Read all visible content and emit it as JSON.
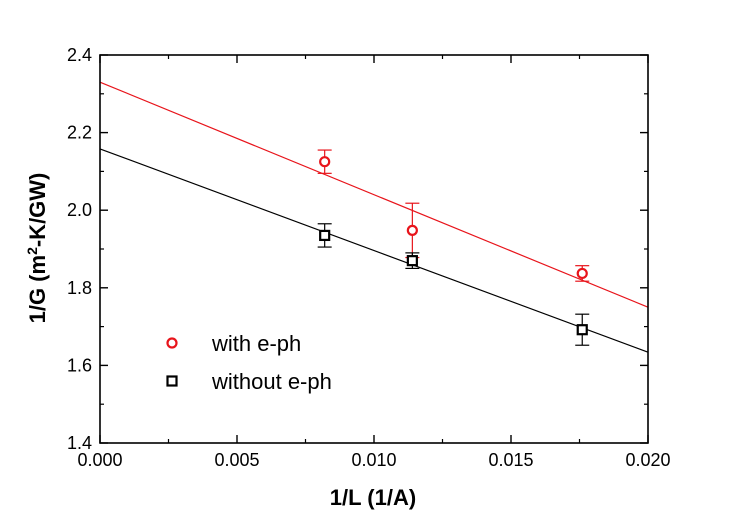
{
  "chart_data": {
    "type": "scatter",
    "xlabel": "1/L (1/A)",
    "ylabel_main": "1/G (m",
    "ylabel_sup": "2",
    "ylabel_tail": "-K/GW)",
    "xlim": [
      0.0,
      0.02
    ],
    "ylim": [
      1.4,
      2.4
    ],
    "x_ticks": [
      0.0,
      0.005,
      0.01,
      0.015,
      0.02
    ],
    "x_tick_labels": [
      "0.000",
      "0.005",
      "0.010",
      "0.015",
      "0.020"
    ],
    "y_ticks": [
      1.4,
      1.6,
      1.8,
      2.0,
      2.2,
      2.4
    ],
    "y_tick_labels": [
      "1.4",
      "1.6",
      "1.8",
      "2.0",
      "2.2",
      "2.4"
    ],
    "grid": false,
    "legend_position": "bottom-left",
    "series": [
      {
        "name": "with e-ph",
        "color": "#e8141b",
        "marker": "circle",
        "x": [
          0.0082,
          0.0114,
          0.0176
        ],
        "y": [
          2.125,
          1.948,
          1.837
        ],
        "err_up": [
          0.03,
          0.07,
          0.02
        ],
        "err_down": [
          0.03,
          0.07,
          0.02
        ],
        "fit": {
          "intercept": 2.33,
          "slope": -29.0
        }
      },
      {
        "name": "without e-ph",
        "color": "#000000",
        "marker": "square",
        "x": [
          0.0082,
          0.0114,
          0.0176
        ],
        "y": [
          1.935,
          1.87,
          1.692
        ],
        "err_up": [
          0.03,
          0.02,
          0.04
        ],
        "err_down": [
          0.03,
          0.02,
          0.04
        ],
        "fit": {
          "intercept": 2.158,
          "slope": -26.2
        }
      }
    ]
  }
}
